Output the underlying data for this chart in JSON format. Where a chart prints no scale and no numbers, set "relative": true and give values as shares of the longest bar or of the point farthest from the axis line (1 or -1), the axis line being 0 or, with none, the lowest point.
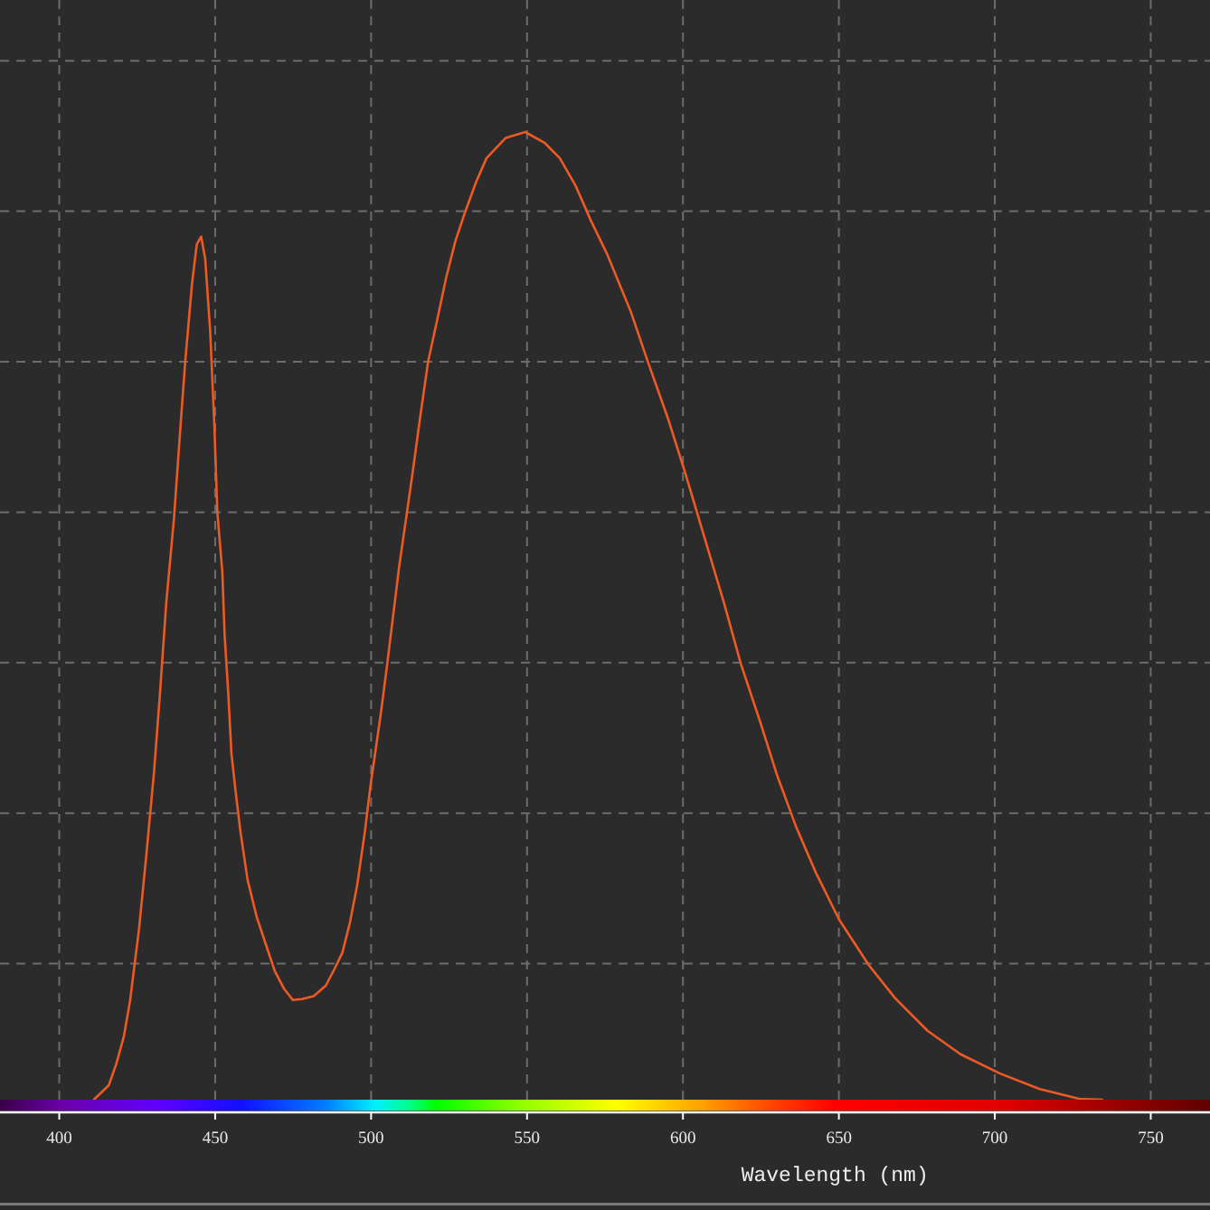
{
  "chart_data": {
    "type": "line",
    "xlabel": "Wavelength (nm)",
    "relative": true,
    "grid": true,
    "color": "#ee5a24",
    "xlim": [
      381,
      769
    ],
    "xticks": [
      400,
      450,
      500,
      550,
      600,
      650,
      700,
      750
    ],
    "x": [
      411.1,
      415.9,
      418.3,
      420.7,
      422.7,
      425.6,
      427.9,
      430.4,
      432.3,
      434.3,
      436.8,
      438.7,
      440.4,
      442.6,
      444.1,
      445.5,
      446.8,
      448.4,
      449.7,
      450.7,
      452.3,
      453.0,
      454.2,
      455.2,
      456.5,
      458.1,
      460.4,
      463.3,
      466.2,
      469.1,
      472.0,
      474.9,
      477.8,
      481.6,
      485.5,
      488.4,
      490.8,
      493.2,
      495.5,
      498.0,
      499.9,
      501.3,
      503.2,
      505.2,
      507.1,
      509.0,
      511.5,
      513.4,
      515.8,
      518.3,
      521.2,
      524.1,
      527.0,
      529.9,
      533.5,
      537.0,
      543.2,
      549.4,
      555.6,
      560.5,
      565.5,
      570.4,
      575.8,
      583.2,
      588.7,
      595.3,
      600.6,
      606.9,
      613.2,
      618.5,
      624.8,
      630.1,
      636.4,
      642.7,
      650.1,
      659.6,
      668.0,
      678.5,
      689.0,
      701.7,
      714.4,
      727.0,
      734.4
    ],
    "values": [
      0,
      0.015,
      0.037,
      0.065,
      0.102,
      0.177,
      0.252,
      0.339,
      0.42,
      0.513,
      0.601,
      0.688,
      0.763,
      0.844,
      0.884,
      0.892,
      0.869,
      0.794,
      0.7,
      0.607,
      0.545,
      0.482,
      0.42,
      0.358,
      0.32,
      0.277,
      0.227,
      0.189,
      0.161,
      0.133,
      0.115,
      0.103,
      0.104,
      0.107,
      0.118,
      0.136,
      0.152,
      0.183,
      0.221,
      0.277,
      0.327,
      0.358,
      0.401,
      0.451,
      0.501,
      0.551,
      0.607,
      0.65,
      0.707,
      0.763,
      0.806,
      0.85,
      0.887,
      0.915,
      0.947,
      0.973,
      0.994,
      1,
      0.989,
      0.973,
      0.945,
      0.909,
      0.873,
      0.815,
      0.763,
      0.703,
      0.649,
      0.581,
      0.513,
      0.451,
      0.39,
      0.336,
      0.281,
      0.234,
      0.186,
      0.139,
      0.105,
      0.071,
      0.047,
      0.027,
      0.011,
      0.001,
      0
    ]
  }
}
